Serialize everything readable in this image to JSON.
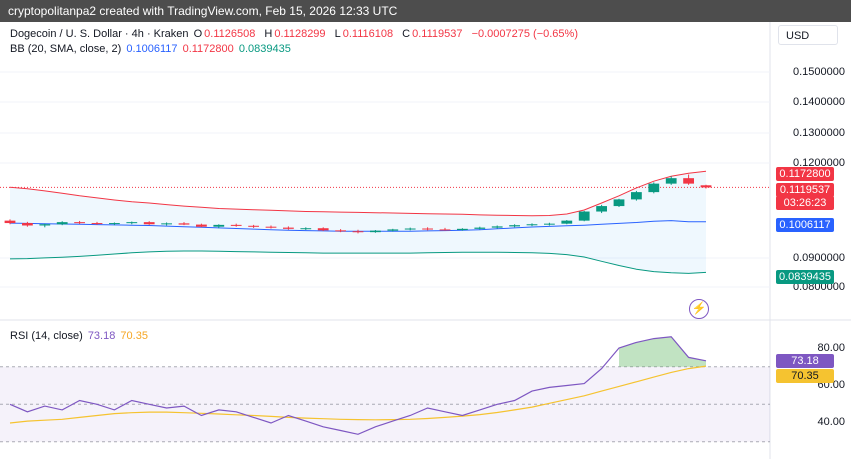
{
  "header": {
    "text": "cryptopolitanpa2 created with TradingView.com, Feb 15, 2026 12:33 UTC"
  },
  "legend": {
    "symbol": "Dogecoin / U. S. Dollar · 4h · Kraken",
    "o_label": "O",
    "o_value": "0.1126508",
    "h_label": "H",
    "h_value": "0.1128299",
    "l_label": "L",
    "l_value": "0.1116108",
    "c_label": "C",
    "c_value": "0.1119537",
    "change": "−0.0007275 (−0.65%)",
    "bb_label": "BB (20, SMA, close, 2)",
    "bb_basis": "0.1006117",
    "bb_upper": "0.1172800",
    "bb_lower": "0.0839435"
  },
  "currency_button": "USD",
  "price_axis": {
    "ticks": [
      "0.1500000",
      "0.1400000",
      "0.1300000",
      "0.1200000",
      "0.0900000",
      "0.0800000"
    ]
  },
  "price_tags": {
    "upper": "0.1172800",
    "last": "0.1119537",
    "countdown": "03:26:23",
    "basis": "0.1006117",
    "lower": "0.0839435"
  },
  "rsi": {
    "label": "RSI (14, close)",
    "value": "73.18",
    "ma": "70.35",
    "ticks": [
      "80.00",
      "60.00",
      "40.00"
    ],
    "tag_value": "73.18",
    "tag_ma": "70.35"
  },
  "colors": {
    "up": "#089981",
    "down": "#f23645",
    "bb_upper": "#f23645",
    "bb_basis": "#2962ff",
    "bb_lower": "#089981",
    "rsi_line": "#7e57c2",
    "rsi_ma": "#f5c330"
  },
  "chart_data": [
    {
      "type": "candlestick",
      "title": "Dogecoin / U. S. Dollar · 4h · Kraken",
      "y_range": [
        0.075,
        0.16
      ],
      "candles": [
        {
          "o": 0.101,
          "h": 0.1014,
          "l": 0.0998,
          "c": 0.1002
        },
        {
          "o": 0.1002,
          "h": 0.1006,
          "l": 0.099,
          "c": 0.0994
        },
        {
          "o": 0.0994,
          "h": 0.1,
          "l": 0.0988,
          "c": 0.0998
        },
        {
          "o": 0.0998,
          "h": 0.1008,
          "l": 0.0995,
          "c": 0.1005
        },
        {
          "o": 0.1005,
          "h": 0.1009,
          "l": 0.0999,
          "c": 0.1002
        },
        {
          "o": 0.1002,
          "h": 0.1006,
          "l": 0.0996,
          "c": 0.1
        },
        {
          "o": 0.1,
          "h": 0.1004,
          "l": 0.0995,
          "c": 0.1002
        },
        {
          "o": 0.1002,
          "h": 0.1007,
          "l": 0.0998,
          "c": 0.1005
        },
        {
          "o": 0.1005,
          "h": 0.1008,
          "l": 0.0996,
          "c": 0.0998
        },
        {
          "o": 0.0998,
          "h": 0.1004,
          "l": 0.0994,
          "c": 0.1001
        },
        {
          "o": 0.1001,
          "h": 0.1005,
          "l": 0.0995,
          "c": 0.0997
        },
        {
          "o": 0.0997,
          "h": 0.1,
          "l": 0.0988,
          "c": 0.099
        },
        {
          "o": 0.099,
          "h": 0.0998,
          "l": 0.0985,
          "c": 0.0996
        },
        {
          "o": 0.0996,
          "h": 0.1,
          "l": 0.099,
          "c": 0.0993
        },
        {
          "o": 0.0993,
          "h": 0.0996,
          "l": 0.0986,
          "c": 0.099
        },
        {
          "o": 0.099,
          "h": 0.0994,
          "l": 0.0984,
          "c": 0.0987
        },
        {
          "o": 0.0987,
          "h": 0.0991,
          "l": 0.098,
          "c": 0.0983
        },
        {
          "o": 0.0983,
          "h": 0.0988,
          "l": 0.0979,
          "c": 0.0985
        },
        {
          "o": 0.0985,
          "h": 0.0988,
          "l": 0.0976,
          "c": 0.0978
        },
        {
          "o": 0.0978,
          "h": 0.0982,
          "l": 0.0972,
          "c": 0.0975
        },
        {
          "o": 0.0975,
          "h": 0.098,
          "l": 0.0968,
          "c": 0.0972
        },
        {
          "o": 0.0972,
          "h": 0.0979,
          "l": 0.097,
          "c": 0.0977
        },
        {
          "o": 0.0977,
          "h": 0.0983,
          "l": 0.0974,
          "c": 0.0981
        },
        {
          "o": 0.0981,
          "h": 0.0987,
          "l": 0.0978,
          "c": 0.0984
        },
        {
          "o": 0.0984,
          "h": 0.0988,
          "l": 0.0978,
          "c": 0.0981
        },
        {
          "o": 0.0981,
          "h": 0.0986,
          "l": 0.0977,
          "c": 0.0979
        },
        {
          "o": 0.0979,
          "h": 0.0985,
          "l": 0.0977,
          "c": 0.0983
        },
        {
          "o": 0.0983,
          "h": 0.099,
          "l": 0.0981,
          "c": 0.0987
        },
        {
          "o": 0.0987,
          "h": 0.0994,
          "l": 0.0984,
          "c": 0.0991
        },
        {
          "o": 0.0991,
          "h": 0.0998,
          "l": 0.0988,
          "c": 0.0995
        },
        {
          "o": 0.0995,
          "h": 0.1001,
          "l": 0.0992,
          "c": 0.0998
        },
        {
          "o": 0.0998,
          "h": 0.1003,
          "l": 0.0994,
          "c": 0.1
        },
        {
          "o": 0.1,
          "h": 0.1012,
          "l": 0.0998,
          "c": 0.101
        },
        {
          "o": 0.101,
          "h": 0.1042,
          "l": 0.1008,
          "c": 0.104
        },
        {
          "o": 0.104,
          "h": 0.1062,
          "l": 0.1035,
          "c": 0.1058
        },
        {
          "o": 0.1058,
          "h": 0.1082,
          "l": 0.1055,
          "c": 0.108
        },
        {
          "o": 0.108,
          "h": 0.1108,
          "l": 0.1076,
          "c": 0.1104
        },
        {
          "o": 0.1104,
          "h": 0.1136,
          "l": 0.11,
          "c": 0.1132
        },
        {
          "o": 0.1132,
          "h": 0.1156,
          "l": 0.1128,
          "c": 0.115
        },
        {
          "o": 0.115,
          "h": 0.1162,
          "l": 0.1128,
          "c": 0.1132
        },
        {
          "o": 0.1126508,
          "h": 0.1128299,
          "l": 0.1116108,
          "c": 0.1119537
        }
      ],
      "bollinger": {
        "upper": [
          0.112,
          0.1115,
          0.1108,
          0.11,
          0.1092,
          0.1085,
          0.1078,
          0.1072,
          0.1068,
          0.1063,
          0.1058,
          0.1054,
          0.105,
          0.1048,
          0.1046,
          0.1044,
          0.1042,
          0.104,
          0.1039,
          0.1038,
          0.1037,
          0.1036,
          0.1035,
          0.1034,
          0.1033,
          0.1032,
          0.1031,
          0.1029,
          0.1028,
          0.1027,
          0.1026,
          0.1027,
          0.1032,
          0.1045,
          0.1068,
          0.1092,
          0.1118,
          0.114,
          0.1156,
          0.1166,
          0.11728
        ],
        "basis": [
          0.1002,
          0.1001,
          0.1,
          0.0999,
          0.0998,
          0.0997,
          0.0996,
          0.0995,
          0.0994,
          0.0992,
          0.099,
          0.0988,
          0.0986,
          0.0984,
          0.0982,
          0.098,
          0.0978,
          0.0977,
          0.0976,
          0.0975,
          0.0975,
          0.0975,
          0.0975,
          0.0975,
          0.0976,
          0.0977,
          0.0978,
          0.098,
          0.0983,
          0.0986,
          0.0989,
          0.0991,
          0.0993,
          0.0995,
          0.0998,
          0.1001,
          0.1004,
          0.1008,
          0.101,
          0.1006,
          0.1006117
        ],
        "lower": [
          0.0884,
          0.0885,
          0.0887,
          0.0889,
          0.0892,
          0.0896,
          0.09,
          0.0904,
          0.0907,
          0.0909,
          0.091,
          0.091,
          0.0909,
          0.0908,
          0.0907,
          0.0906,
          0.0905,
          0.0904,
          0.0903,
          0.0903,
          0.0903,
          0.0903,
          0.0903,
          0.0903,
          0.0904,
          0.0905,
          0.0906,
          0.0906,
          0.0906,
          0.0905,
          0.0904,
          0.0902,
          0.0898,
          0.089,
          0.0876,
          0.0862,
          0.085,
          0.0842,
          0.0838,
          0.0836,
          0.0839435
        ]
      }
    },
    {
      "type": "line",
      "title": "RSI (14, close)",
      "y_range": [
        25,
        95
      ],
      "bands": [
        30,
        50,
        70
      ],
      "series": [
        {
          "name": "RSI",
          "values": [
            50,
            46,
            49,
            47,
            52,
            50,
            47,
            52,
            50,
            48,
            49,
            44,
            47,
            46,
            43,
            40,
            44,
            41,
            38,
            36,
            34,
            38,
            41,
            44,
            48,
            46,
            44,
            47,
            50,
            52,
            57,
            59,
            60,
            61,
            69,
            80,
            83,
            85,
            86,
            75,
            73.18
          ]
        },
        {
          "name": "MA",
          "values": [
            40,
            41,
            41.5,
            42,
            43,
            44,
            45,
            45.5,
            45.8,
            45.8,
            45.5,
            45.2,
            44.8,
            44.4,
            44,
            43.5,
            43,
            42.6,
            42.3,
            42,
            41.8,
            41.7,
            41.8,
            42,
            42.4,
            43,
            43.7,
            44.5,
            45.6,
            47,
            48.5,
            50.5,
            52.5,
            54.5,
            57,
            59.5,
            62,
            64.5,
            67,
            69,
            70.35
          ]
        }
      ]
    }
  ]
}
